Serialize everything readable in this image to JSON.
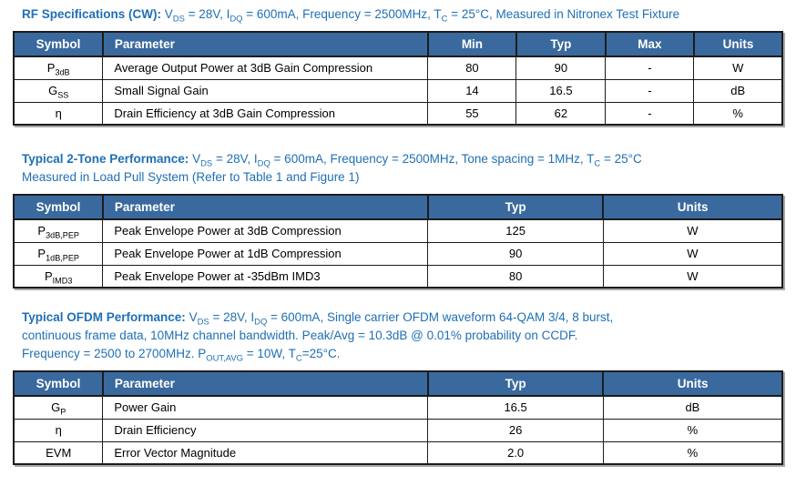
{
  "colors": {
    "title_blue": "#1F6FB5",
    "header_bg": "#3A699E",
    "header_text": "#FFFFFF",
    "border": "#1C1C1C",
    "body_text": "#000000"
  },
  "sections": [
    {
      "id": "rf-specifications-cw",
      "title": "RF Specifications (CW):",
      "conditions": "V~DS~ = 28V, I~DQ~ = 600mA,  Frequency = 2500MHz, T~C~ = 25°C, Measured in Nitronex Test Fixture",
      "table": {
        "columns": [
          "Symbol",
          "Parameter",
          "Min",
          "Typ",
          "Max",
          "Units"
        ],
        "rows": [
          [
            "P~3dB~",
            "Average Output Power at 3dB Gain Compression",
            "80",
            "90",
            "-",
            "W"
          ],
          [
            "G~SS~",
            "Small Signal Gain",
            "14",
            "16.5",
            "-",
            "dB"
          ],
          [
            "η",
            "Drain Efficiency at 3dB Gain Compression",
            "55",
            "62",
            "-",
            "%"
          ]
        ]
      }
    },
    {
      "id": "typical-2-tone-performance",
      "title": "Typical 2-Tone Performance:",
      "conditions": "V~DS~ = 28V, I~DQ~ = 600mA, Frequency = 2500MHz, Tone spacing = 1MHz, T~C~ = 25°C\nMeasured in Load Pull System (Refer to Table 1 and Figure 1)",
      "table": {
        "columns": [
          "Symbol",
          "Parameter",
          "Typ",
          "Units"
        ],
        "rows": [
          [
            "P~3dB,PEP~",
            "Peak Envelope Power at 3dB Compression",
            "125",
            "W"
          ],
          [
            "P~1dB,PEP~",
            "Peak Envelope Power at 1dB Compression",
            "90",
            "W"
          ],
          [
            "P~IMD3~",
            "Peak Envelope Power at -35dBm IMD3",
            "80",
            "W"
          ]
        ]
      }
    },
    {
      "id": "typical-ofdm-performance",
      "title": "Typical OFDM Performance:",
      "conditions": "V~DS~ = 28V, I~DQ~ = 600mA, Single carrier OFDM waveform 64-QAM 3/4, 8 burst,\ncontinuous frame data, 10MHz channel bandwidth. Peak/Avg = 10.3dB @ 0.01% probability on CCDF.\nFrequency = 2500 to 2700MHz. P~OUT,AVG~ = 10W, T~C~=25°C.",
      "table": {
        "columns": [
          "Symbol",
          "Parameter",
          "Typ",
          "Units"
        ],
        "rows": [
          [
            "G~P~",
            "Power Gain",
            "16.5",
            "dB"
          ],
          [
            "η",
            "Drain Efficiency",
            "26",
            "%"
          ],
          [
            "EVM",
            "Error Vector Magnitude",
            "2.0",
            "%"
          ]
        ]
      }
    }
  ]
}
